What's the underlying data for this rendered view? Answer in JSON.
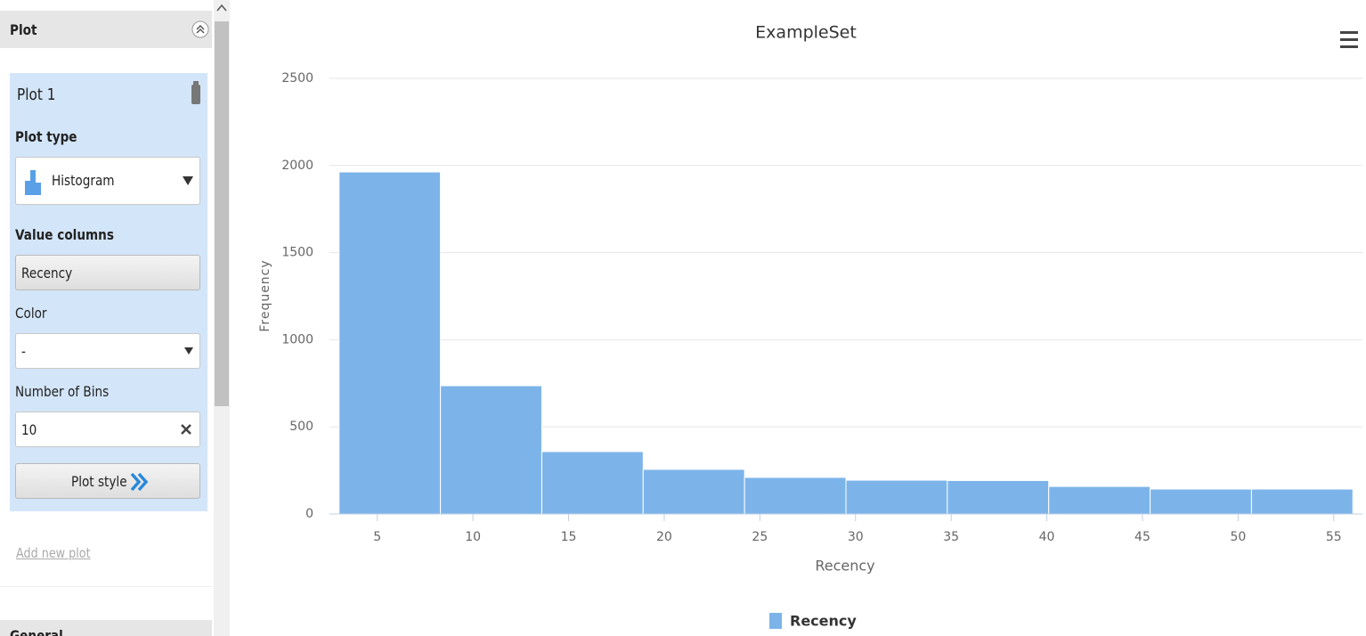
{
  "panel": {
    "header": "Plot",
    "plot_name": "Plot 1",
    "plot_type_label": "Plot type",
    "plot_type": "Histogram",
    "value_columns_label": "Value columns",
    "value_column": "Recency",
    "color_label": "Color",
    "color": "-",
    "bins_label": "Number of Bins",
    "bins": "10",
    "plot_style": "Plot style",
    "add_plot": "Add new plot",
    "next_section": "General"
  },
  "chart_data": {
    "type": "histogram",
    "title": "ExampleSet",
    "x_label": "Recency",
    "y_label": "Frequency",
    "bins": [
      3,
      8.3,
      13.6,
      18.9,
      24.2,
      29.5,
      34.8,
      40.1,
      45.4,
      50.7,
      56
    ],
    "series": [
      {
        "name": "Recency",
        "color": "#7cb4ea",
        "values": [
          1963,
          736,
          358,
          256,
          210,
          194,
          192,
          158,
          143,
          143
        ]
      }
    ],
    "xlim": [
      2.5,
      56.5
    ],
    "xticks": [
      5,
      10,
      15,
      20,
      25,
      30,
      35,
      40,
      45,
      50,
      55
    ],
    "ylim": [
      0,
      2500
    ],
    "yticks": [
      0,
      500,
      1000,
      1500,
      2000,
      2500
    ],
    "grid": true,
    "legend": "bottom"
  }
}
